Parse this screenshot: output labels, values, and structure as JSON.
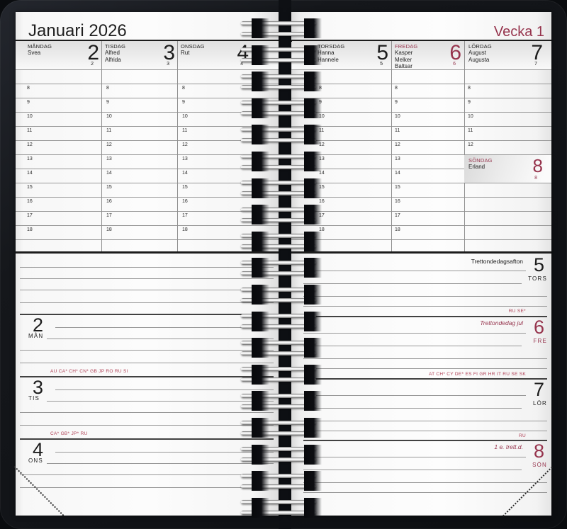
{
  "calendar": {
    "month_title": "Januari 2026",
    "week_label": "Vecka 1",
    "hours": [
      "8",
      "9",
      "10",
      "11",
      "12",
      "13",
      "14",
      "15",
      "16",
      "17",
      "18"
    ],
    "left_page": {
      "columns": [
        {
          "day": "MÅNDAG",
          "names": [
            "Svea"
          ],
          "date": "2"
        },
        {
          "day": "TISDAG",
          "names": [
            "Alfred",
            "Alfrida"
          ],
          "date": "3"
        },
        {
          "day": "ONSDAG",
          "names": [
            "Rut"
          ],
          "date": "4"
        }
      ],
      "diary": [
        {
          "num": "2",
          "abbr": "MÅN"
        },
        {
          "num": "3",
          "abbr": "TIS",
          "codes": "AU CA* CH* CN* GB JP RO RU SI"
        },
        {
          "num": "4",
          "abbr": "ONS",
          "codes": "CA* GB* JP* RU"
        }
      ]
    },
    "right_page": {
      "columns": [
        {
          "day": "TORSDAG",
          "names": [
            "Hanna",
            "Hannele"
          ],
          "date": "5"
        },
        {
          "day": "FREDAG",
          "names": [
            "Kasper",
            "Melker",
            "Baltsar"
          ],
          "date": "6"
        },
        {
          "day": "LÖRDAG",
          "names": [
            "August",
            "Augusta"
          ],
          "date": "7"
        }
      ],
      "sunday": {
        "day": "SÖNDAG",
        "names": [
          "Erland"
        ],
        "date": "8"
      },
      "diary": [
        {
          "num": "5",
          "abbr": "TORS",
          "holiday": "Trettondedagsafton"
        },
        {
          "num": "6",
          "abbr": "FRE",
          "holiday": "Trettondedag jul",
          "codes": "RU SE*"
        },
        {
          "num": "7",
          "abbr": "LÖR",
          "codes": "AT CH* CY DE* ES FI GR HR IT RU SE SK"
        },
        {
          "num": "8",
          "abbr": "SÖN",
          "holiday": "1 e. trett.d.",
          "codes": "RU"
        }
      ]
    },
    "colors": {
      "accent": "#96344d",
      "codes_red": "#b04055",
      "cover": "#14161a"
    }
  }
}
